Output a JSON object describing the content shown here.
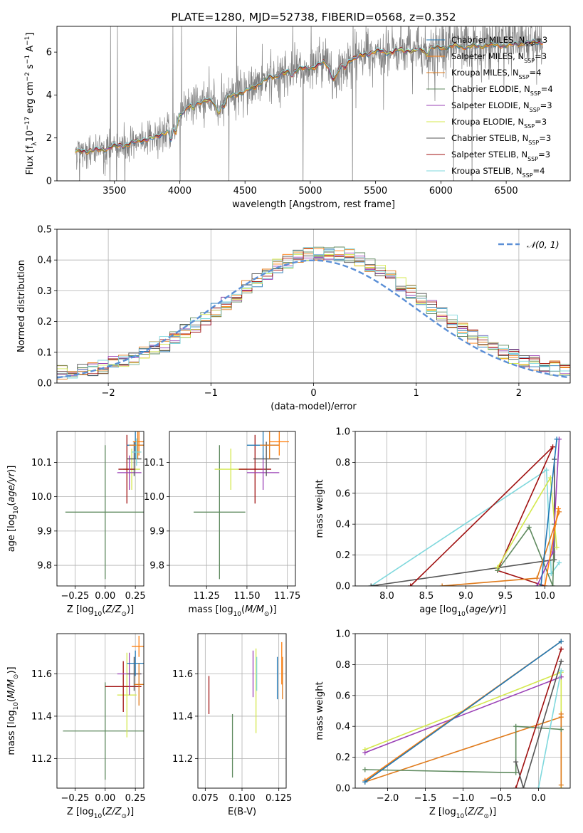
{
  "colors": {
    "miles_chabrier": "#1f77b4",
    "miles_salpeter": "#ff7f0e",
    "kroupa_miles": "#e07b1c",
    "chabrier_elodie": "#5f8a5f",
    "salpeter_elodie": "#9a40b5",
    "kroupa_elodie": "#d4e84d",
    "chabrier_stelib": "#555555",
    "salpeter_stelib": "#a01010",
    "kroupa_stelib": "#7fd8dd",
    "normal_curve": "#5b8fd6",
    "data": "#808080"
  },
  "chart_data": [
    {
      "id": "spectrum",
      "type": "line",
      "title": "PLATE=1280, MJD=52738, FIBERID=0568, z=0.352",
      "xlabel": "wavelength [Angstrom, rest frame]",
      "ylabel": "Flux [f_λ 10^-17 erg cm^-2 s^-1 A^-1]",
      "xlim": [
        3060,
        6990
      ],
      "ylim": [
        0,
        7.2
      ],
      "xticks": [
        3500,
        4000,
        4500,
        5000,
        5500,
        6000,
        6500
      ],
      "yticks": [
        0,
        2,
        4,
        6
      ],
      "grid": false,
      "legend_position": "upper right",
      "legend": [
        {
          "key": "miles_chabrier",
          "base": "Chabrier MILES, N",
          "sub": "SSP",
          "tail": "=3"
        },
        {
          "key": "miles_salpeter",
          "base": "Salpeter MILES, N",
          "sub": "SSP",
          "tail": "=3"
        },
        {
          "key": "kroupa_miles",
          "base": "Kroupa MILES, N",
          "sub": "SSP",
          "tail": "=4"
        },
        {
          "key": "chabrier_elodie",
          "base": "Chabrier ELODIE, N",
          "sub": "SSP",
          "tail": "=4"
        },
        {
          "key": "salpeter_elodie",
          "base": "Salpeter ELODIE, N",
          "sub": "SSP",
          "tail": "=3"
        },
        {
          "key": "kroupa_elodie",
          "base": "Kroupa ELODIE, N",
          "sub": "SSP",
          "tail": "=3"
        },
        {
          "key": "chabrier_stelib",
          "base": "Chabrier STELIB, N",
          "sub": "SSP",
          "tail": "=3"
        },
        {
          "key": "salpeter_stelib",
          "base": "Salpeter STELIB, N",
          "sub": "SSP",
          "tail": "=3"
        },
        {
          "key": "kroupa_stelib",
          "base": "Kroupa STELIB, N",
          "sub": "SSP",
          "tail": "=4"
        }
      ],
      "continuum": [
        [
          3200,
          1.35
        ],
        [
          3300,
          1.4
        ],
        [
          3400,
          1.45
        ],
        [
          3500,
          1.6
        ],
        [
          3600,
          1.7
        ],
        [
          3700,
          1.9
        ],
        [
          3800,
          2.0
        ],
        [
          3900,
          2.3
        ],
        [
          3950,
          2.6
        ],
        [
          4000,
          3.1
        ],
        [
          4100,
          3.6
        ],
        [
          4200,
          3.75
        ],
        [
          4300,
          3.6
        ],
        [
          4400,
          4.0
        ],
        [
          4500,
          4.15
        ],
        [
          4600,
          4.5
        ],
        [
          4700,
          4.85
        ],
        [
          4800,
          5.0
        ],
        [
          4900,
          5.2
        ],
        [
          5000,
          5.25
        ],
        [
          5100,
          5.5
        ],
        [
          5200,
          5.1
        ],
        [
          5300,
          5.65
        ],
        [
          5400,
          5.85
        ],
        [
          5500,
          6.05
        ],
        [
          5600,
          6.0
        ],
        [
          5700,
          6.1
        ],
        [
          5800,
          6.05
        ],
        [
          5900,
          6.2
        ],
        [
          6000,
          6.2
        ],
        [
          6100,
          6.3
        ],
        [
          6200,
          6.25
        ],
        [
          6300,
          6.3
        ],
        [
          6400,
          6.35
        ],
        [
          6500,
          6.3
        ],
        [
          6600,
          6.4
        ],
        [
          6700,
          6.45
        ],
        [
          6780,
          6.5
        ]
      ]
    },
    {
      "id": "residuals",
      "type": "line",
      "xlabel": "(data-model)/error",
      "ylabel": "Normed distribution",
      "xlim": [
        -2.5,
        2.5
      ],
      "ylim": [
        0,
        0.5
      ],
      "xticks": [
        -2,
        -1,
        0,
        1,
        2
      ],
      "yticks": [
        0.0,
        0.1,
        0.2,
        0.3,
        0.4,
        0.5
      ],
      "grid": true,
      "legend_position": "upper right",
      "normal_label": "𝒩(0, 1)",
      "bin_width": 0.1
    },
    {
      "id": "age_vs_Z",
      "type": "scatter",
      "xlabel": "Z [log10(Z/Z⊙)]",
      "ylabel": "age [log10(age/yr)]",
      "xlim": [
        -0.4,
        0.32
      ],
      "ylim": [
        9.74,
        10.19
      ],
      "xticks": [
        -0.25,
        0.0,
        0.25
      ],
      "yticks": [
        9.8,
        9.9,
        10.0,
        10.1
      ],
      "grid": true,
      "points": [
        {
          "key": "chabrier_elodie",
          "x": 0.0,
          "y": 9.955,
          "xerr": 0.33,
          "yerr": 0.195
        },
        {
          "key": "kroupa_elodie",
          "x": 0.22,
          "y": 10.08,
          "xerr": 0.07,
          "yerr": 0.06
        },
        {
          "key": "salpeter_stelib",
          "x": 0.18,
          "y": 10.08,
          "xerr": 0.07,
          "yerr": 0.1
        },
        {
          "key": "salpeter_elodie",
          "x": 0.2,
          "y": 10.07,
          "xerr": 0.1,
          "yerr": 0.05
        },
        {
          "key": "chabrier_stelib",
          "x": 0.24,
          "y": 10.11,
          "xerr": 0.06,
          "yerr": 0.05
        },
        {
          "key": "miles_chabrier",
          "x": 0.25,
          "y": 10.15,
          "xerr": 0.07,
          "yerr": 0.04
        },
        {
          "key": "kroupa_miles",
          "x": 0.27,
          "y": 10.15,
          "xerr": 0.07,
          "yerr": 0.04
        },
        {
          "key": "miles_salpeter",
          "x": 0.28,
          "y": 10.16,
          "xerr": 0.05,
          "yerr": 0.04
        },
        {
          "key": "kroupa_stelib",
          "x": 0.26,
          "y": 10.13,
          "xerr": 0.04,
          "yerr": 0.04
        }
      ]
    },
    {
      "id": "age_vs_mass",
      "type": "scatter",
      "xlabel": "mass [log10(M/M⊙)]",
      "ylabel": "",
      "xlim": [
        11.02,
        11.8
      ],
      "ylim": [
        9.74,
        10.19
      ],
      "xticks": [
        11.25,
        11.5,
        11.75
      ],
      "yticks": [
        9.8,
        9.9,
        10.0,
        10.1
      ],
      "grid": true,
      "points": [
        {
          "key": "chabrier_elodie",
          "x": 11.33,
          "y": 9.955,
          "xerr": 0.16,
          "yerr": 0.195
        },
        {
          "key": "kroupa_elodie",
          "x": 11.4,
          "y": 10.08,
          "xerr": 0.1,
          "yerr": 0.06
        },
        {
          "key": "salpeter_stelib",
          "x": 11.55,
          "y": 10.08,
          "xerr": 0.1,
          "yerr": 0.1
        },
        {
          "key": "salpeter_elodie",
          "x": 11.6,
          "y": 10.07,
          "xerr": 0.1,
          "yerr": 0.05
        },
        {
          "key": "chabrier_stelib",
          "x": 11.62,
          "y": 10.11,
          "xerr": 0.08,
          "yerr": 0.05
        },
        {
          "key": "miles_chabrier",
          "x": 11.6,
          "y": 10.15,
          "xerr": 0.1,
          "yerr": 0.04
        },
        {
          "key": "kroupa_miles",
          "x": 11.64,
          "y": 10.15,
          "xerr": 0.06,
          "yerr": 0.04
        },
        {
          "key": "miles_salpeter",
          "x": 11.7,
          "y": 10.16,
          "xerr": 0.06,
          "yerr": 0.04
        }
      ]
    },
    {
      "id": "massweight_vs_age",
      "type": "line",
      "xlabel": "age [log10(age/yr)]",
      "ylabel": "mass weight",
      "xlim": [
        7.6,
        10.32
      ],
      "ylim": [
        0.0,
        1.0
      ],
      "xticks": [
        8.0,
        8.5,
        9.0,
        9.5,
        10.0
      ],
      "yticks": [
        0.0,
        0.2,
        0.4,
        0.6,
        0.8,
        1.0
      ],
      "grid": true,
      "series": [
        {
          "key": "kroupa_stelib",
          "points": [
            [
              7.8,
              0.0
            ],
            [
              10.02,
              0.75
            ],
            [
              10.08,
              0.08
            ],
            [
              10.18,
              0.15
            ]
          ]
        },
        {
          "key": "chabrier_stelib",
          "points": [
            [
              7.8,
              0.0
            ],
            [
              10.12,
              0.17
            ],
            [
              10.12,
              0.82
            ]
          ]
        },
        {
          "key": "salpeter_stelib",
          "points": [
            [
              8.3,
              0.0
            ],
            [
              10.1,
              0.9
            ],
            [
              9.4,
              0.1
            ],
            [
              10.0,
              0.0
            ]
          ]
        },
        {
          "key": "chabrier_elodie",
          "points": [
            [
              9.4,
              0.1
            ],
            [
              9.8,
              0.38
            ],
            [
              10.1,
              0.0
            ],
            [
              10.12,
              0.4
            ]
          ]
        },
        {
          "key": "kroupa_elodie",
          "points": [
            [
              9.4,
              0.12
            ],
            [
              10.07,
              0.7
            ],
            [
              10.15,
              0.25
            ]
          ]
        },
        {
          "key": "salpeter_elodie",
          "points": [
            [
              9.9,
              0.0
            ],
            [
              10.1,
              0.22
            ],
            [
              10.18,
              0.95
            ]
          ]
        },
        {
          "key": "kroupa_miles",
          "points": [
            [
              8.7,
              0.0
            ],
            [
              9.9,
              0.05
            ],
            [
              10.18,
              0.48
            ]
          ]
        },
        {
          "key": "miles_salpeter",
          "points": [
            [
              10.0,
              0.0
            ],
            [
              10.17,
              0.5
            ]
          ]
        },
        {
          "key": "miles_chabrier",
          "points": [
            [
              9.95,
              0.0
            ],
            [
              10.15,
              0.95
            ]
          ]
        }
      ]
    },
    {
      "id": "mass_vs_Z",
      "type": "scatter",
      "xlabel": "Z [log10(Z/Z⊙)]",
      "ylabel": "mass [log10(M/M⊙)]",
      "xlim": [
        -0.4,
        0.32
      ],
      "ylim": [
        11.06,
        11.79
      ],
      "xticks": [
        -0.25,
        0.0,
        0.25
      ],
      "yticks": [
        11.2,
        11.4,
        11.6
      ],
      "grid": true,
      "points": [
        {
          "key": "chabrier_elodie",
          "x": 0.0,
          "y": 11.33,
          "xerr": 0.35,
          "yerr": 0.23
        },
        {
          "key": "kroupa_elodie",
          "x": 0.18,
          "y": 11.5,
          "xerr": 0.08,
          "yerr": 0.2
        },
        {
          "key": "salpeter_stelib",
          "x": 0.15,
          "y": 11.54,
          "xerr": 0.15,
          "yerr": 0.12
        },
        {
          "key": "salpeter_elodie",
          "x": 0.2,
          "y": 11.6,
          "xerr": 0.1,
          "yerr": 0.1
        },
        {
          "key": "chabrier_stelib",
          "x": 0.24,
          "y": 11.6,
          "xerr": 0.06,
          "yerr": 0.08
        },
        {
          "key": "miles_chabrier",
          "x": 0.25,
          "y": 11.65,
          "xerr": 0.07,
          "yerr": 0.06
        },
        {
          "key": "kroupa_miles",
          "x": 0.28,
          "y": 11.55,
          "xerr": 0.04,
          "yerr": 0.1
        },
        {
          "key": "miles_salpeter",
          "x": 0.28,
          "y": 11.73,
          "xerr": 0.06,
          "yerr": 0.05
        }
      ]
    },
    {
      "id": "mass_vs_ebv",
      "type": "scatter",
      "xlabel": "E(B-V)",
      "ylabel": "",
      "xlim": [
        0.07,
        0.13
      ],
      "ylim": [
        11.06,
        11.79
      ],
      "xticks": [
        0.075,
        0.1,
        0.125
      ],
      "yticks": [
        11.2,
        11.4,
        11.6
      ],
      "grid": true,
      "points": [
        {
          "key": "salpeter_stelib",
          "x": 0.0775,
          "y": 11.5,
          "yerr": 0.09
        },
        {
          "key": "chabrier_elodie",
          "x": 0.0935,
          "y": 11.26,
          "yerr": 0.15
        },
        {
          "key": "salpeter_elodie",
          "x": 0.1075,
          "y": 11.6,
          "yerr": 0.11
        },
        {
          "key": "kroupa_elodie",
          "x": 0.1095,
          "y": 11.52,
          "yerr": 0.2
        },
        {
          "key": "kroupa_stelib",
          "x": 0.11,
          "y": 11.6,
          "yerr": 0.08
        },
        {
          "key": "miles_chabrier",
          "x": 0.124,
          "y": 11.58,
          "yerr": 0.1
        },
        {
          "key": "kroupa_miles",
          "x": 0.1275,
          "y": 11.58,
          "yerr": 0.1
        },
        {
          "key": "miles_salpeter",
          "x": 0.127,
          "y": 11.65,
          "yerr": 0.1
        }
      ]
    },
    {
      "id": "massweight_vs_Z",
      "type": "line",
      "xlabel": "Z [log10(Z/Z⊙)]",
      "ylabel": "mass weight",
      "xlim": [
        -2.43,
        0.42
      ],
      "ylim": [
        0.0,
        1.0
      ],
      "xticks": [
        -2.0,
        -1.5,
        -1.0,
        -0.5,
        0.0
      ],
      "yticks": [
        0.0,
        0.2,
        0.4,
        0.6,
        0.8,
        1.0
      ],
      "grid": true,
      "series": [
        {
          "key": "kroupa_elodie",
          "points": [
            [
              -2.3,
              0.25
            ],
            [
              0.3,
              0.75
            ],
            [
              0.3,
              0.0
            ]
          ]
        },
        {
          "key": "salpeter_elodie",
          "points": [
            [
              -2.3,
              0.23
            ],
            [
              0.3,
              0.72
            ]
          ]
        },
        {
          "key": "kroupa_miles",
          "points": [
            [
              -2.3,
              0.04
            ],
            [
              0.3,
              0.46
            ],
            [
              0.3,
              0.48
            ],
            [
              0.3,
              0.02
            ]
          ]
        },
        {
          "key": "miles_salpeter",
          "points": [
            [
              -2.3,
              0.05
            ],
            [
              0.3,
              0.95
            ]
          ]
        },
        {
          "key": "chabrier_elodie",
          "points": [
            [
              -2.3,
              0.12
            ],
            [
              -0.3,
              0.1
            ],
            [
              -0.3,
              0.4
            ],
            [
              0.3,
              0.38
            ]
          ]
        },
        {
          "key": "salpeter_stelib",
          "points": [
            [
              -0.3,
              0.0
            ],
            [
              0.3,
              0.9
            ]
          ]
        },
        {
          "key": "chabrier_stelib",
          "points": [
            [
              -0.3,
              0.17
            ],
            [
              -0.2,
              0.0
            ],
            [
              0.3,
              0.82
            ]
          ]
        },
        {
          "key": "kroupa_stelib",
          "points": [
            [
              0.0,
              0.0
            ],
            [
              0.3,
              0.76
            ]
          ]
        },
        {
          "key": "miles_chabrier",
          "points": [
            [
              -2.3,
              0.04
            ],
            [
              0.3,
              0.95
            ]
          ]
        }
      ]
    }
  ]
}
